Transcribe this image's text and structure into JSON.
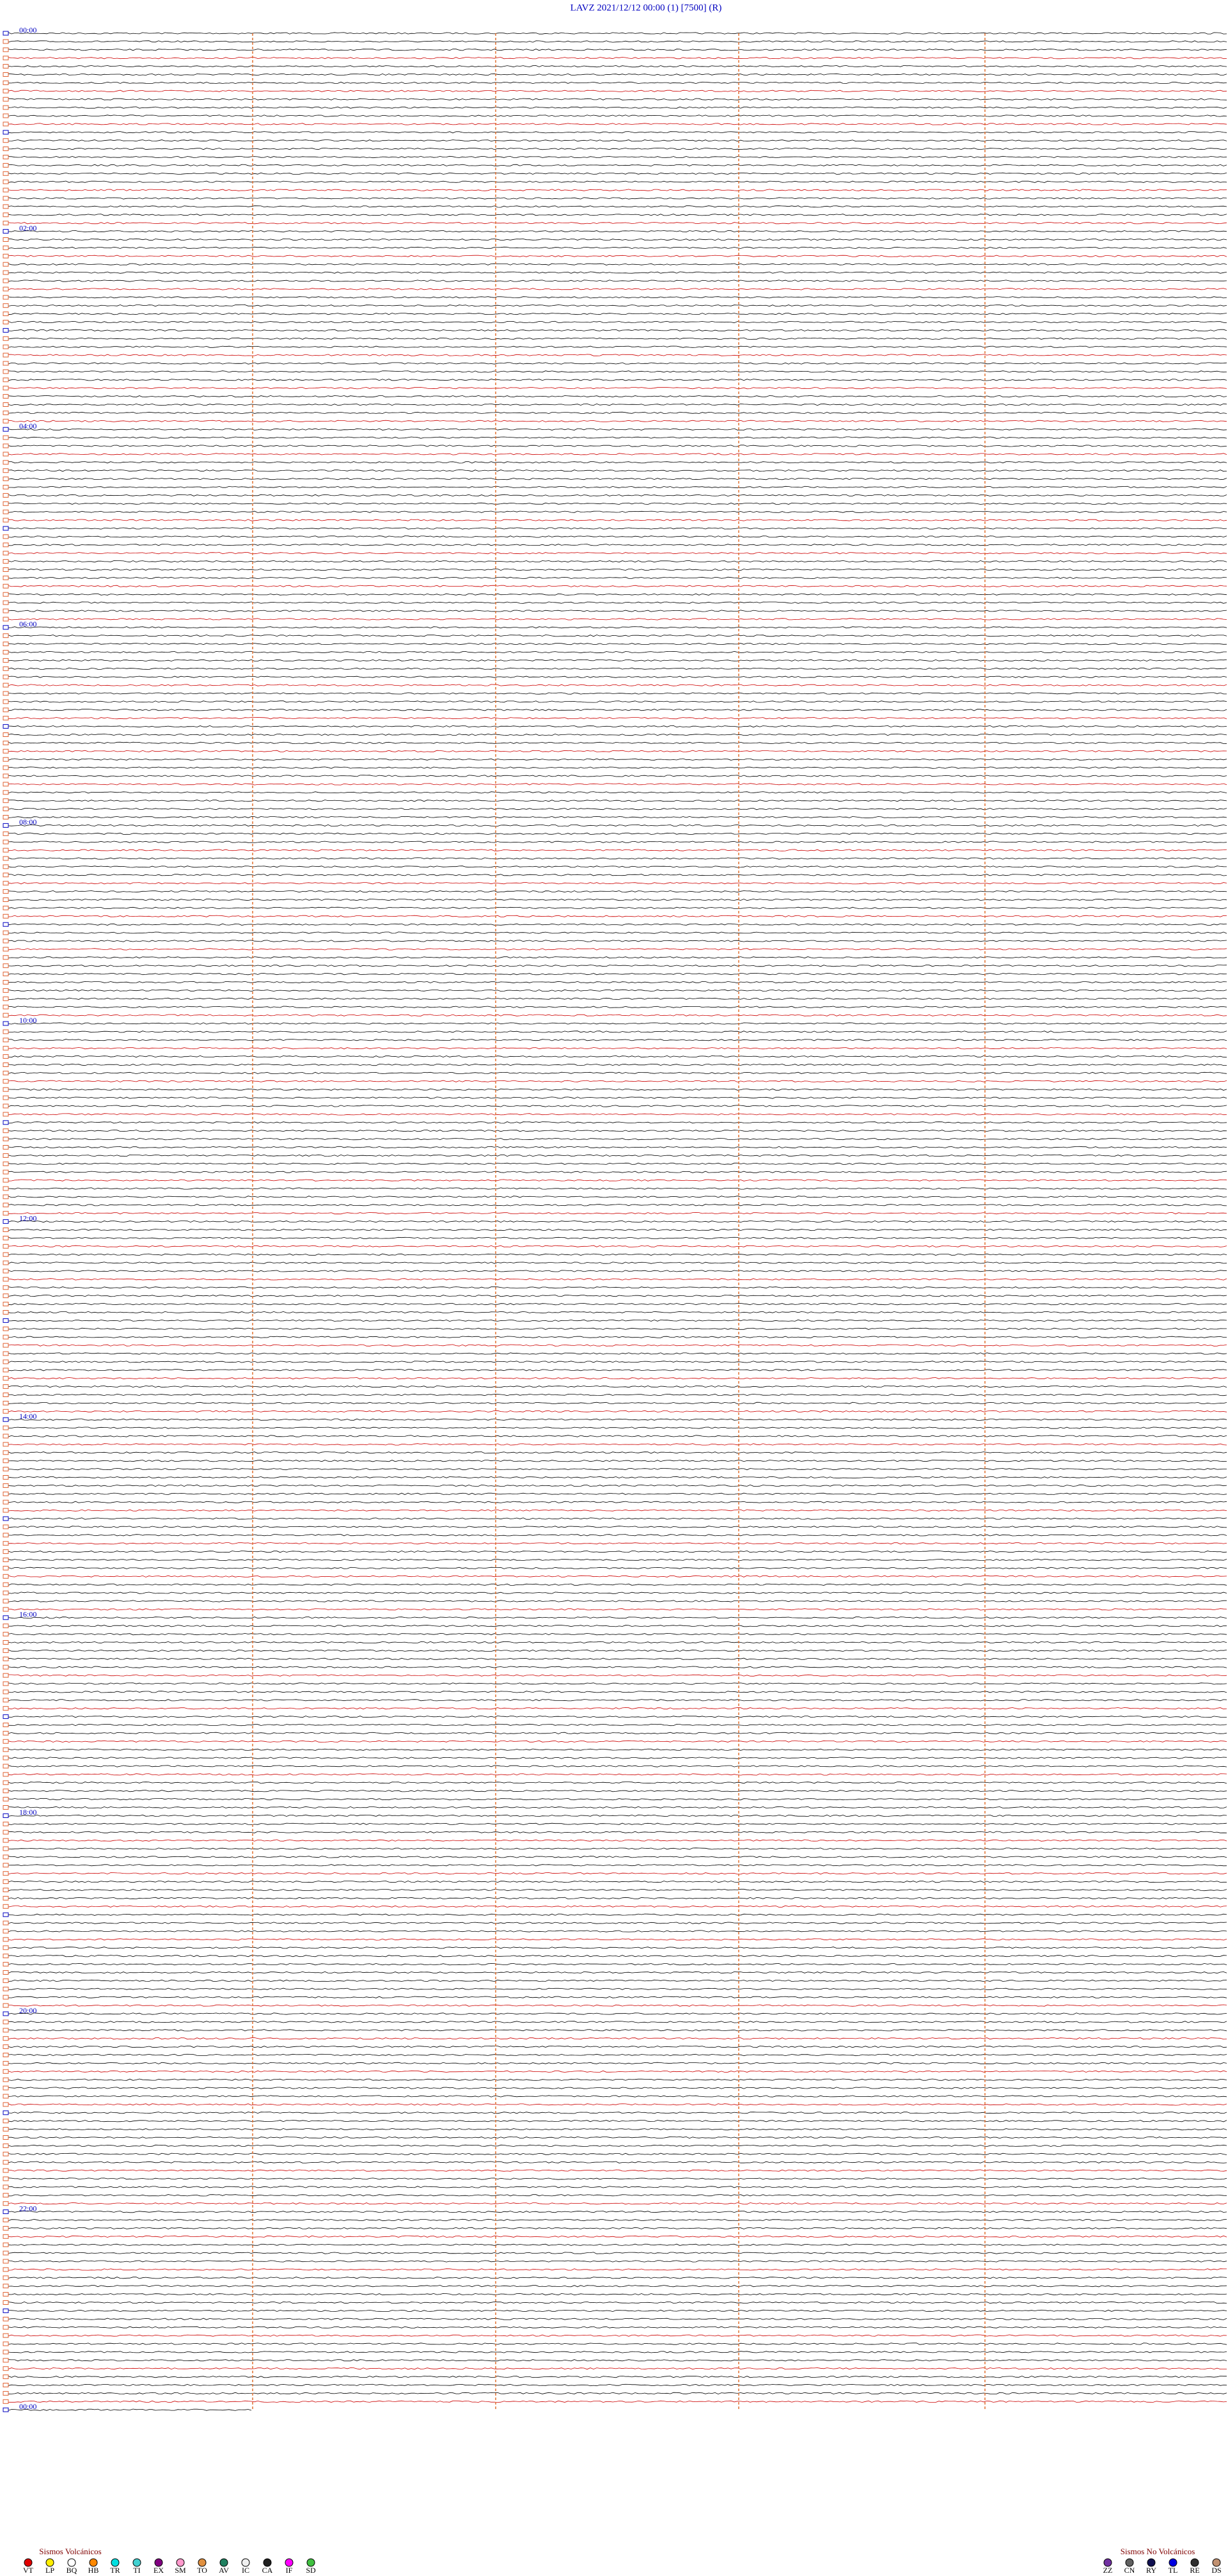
{
  "header": {
    "title": "LAVZ     2021/12/12 00:00     (1)     [7500]    (R)"
  },
  "hour_labels": [
    "00:00",
    "02:00",
    "04:00",
    "06:00",
    "08:00",
    "10:00",
    "12:00",
    "14:00",
    "16:00",
    "18:00",
    "20:00",
    "22:00",
    "00:00"
  ],
  "legend": {
    "volcanic": {
      "title": "Sismos Volcánicos",
      "items": [
        {
          "code": "VT",
          "color": "#e00000"
        },
        {
          "code": "LP",
          "color": "#ffee00"
        },
        {
          "code": "BQ",
          "color": "#ffffff"
        },
        {
          "code": "HB",
          "color": "#ff8800"
        },
        {
          "code": "TR",
          "color": "#00e0e0"
        },
        {
          "code": "TI",
          "color": "#40d0d0"
        },
        {
          "code": "EX",
          "color": "#800080"
        },
        {
          "code": "SM",
          "color": "#ff99cc"
        },
        {
          "code": "TO",
          "color": "#e09040"
        },
        {
          "code": "AV",
          "color": "#208060"
        },
        {
          "code": "IC",
          "color": "#f0f0f0"
        },
        {
          "code": "CA",
          "color": "#202020"
        },
        {
          "code": "IF",
          "color": "#ff00ff"
        },
        {
          "code": "SD",
          "color": "#40c040"
        }
      ]
    },
    "non_volcanic": {
      "title": "Sismos No Volcánicos",
      "items": [
        {
          "code": "ZZ",
          "color": "#7030a0"
        },
        {
          "code": "CN",
          "color": "#606060"
        },
        {
          "code": "RY",
          "color": "#101050"
        },
        {
          "code": "TL",
          "color": "#0000e0"
        },
        {
          "code": "RE",
          "color": "#303030"
        },
        {
          "code": "DS",
          "color": "#c09070"
        }
      ]
    }
  }
}
